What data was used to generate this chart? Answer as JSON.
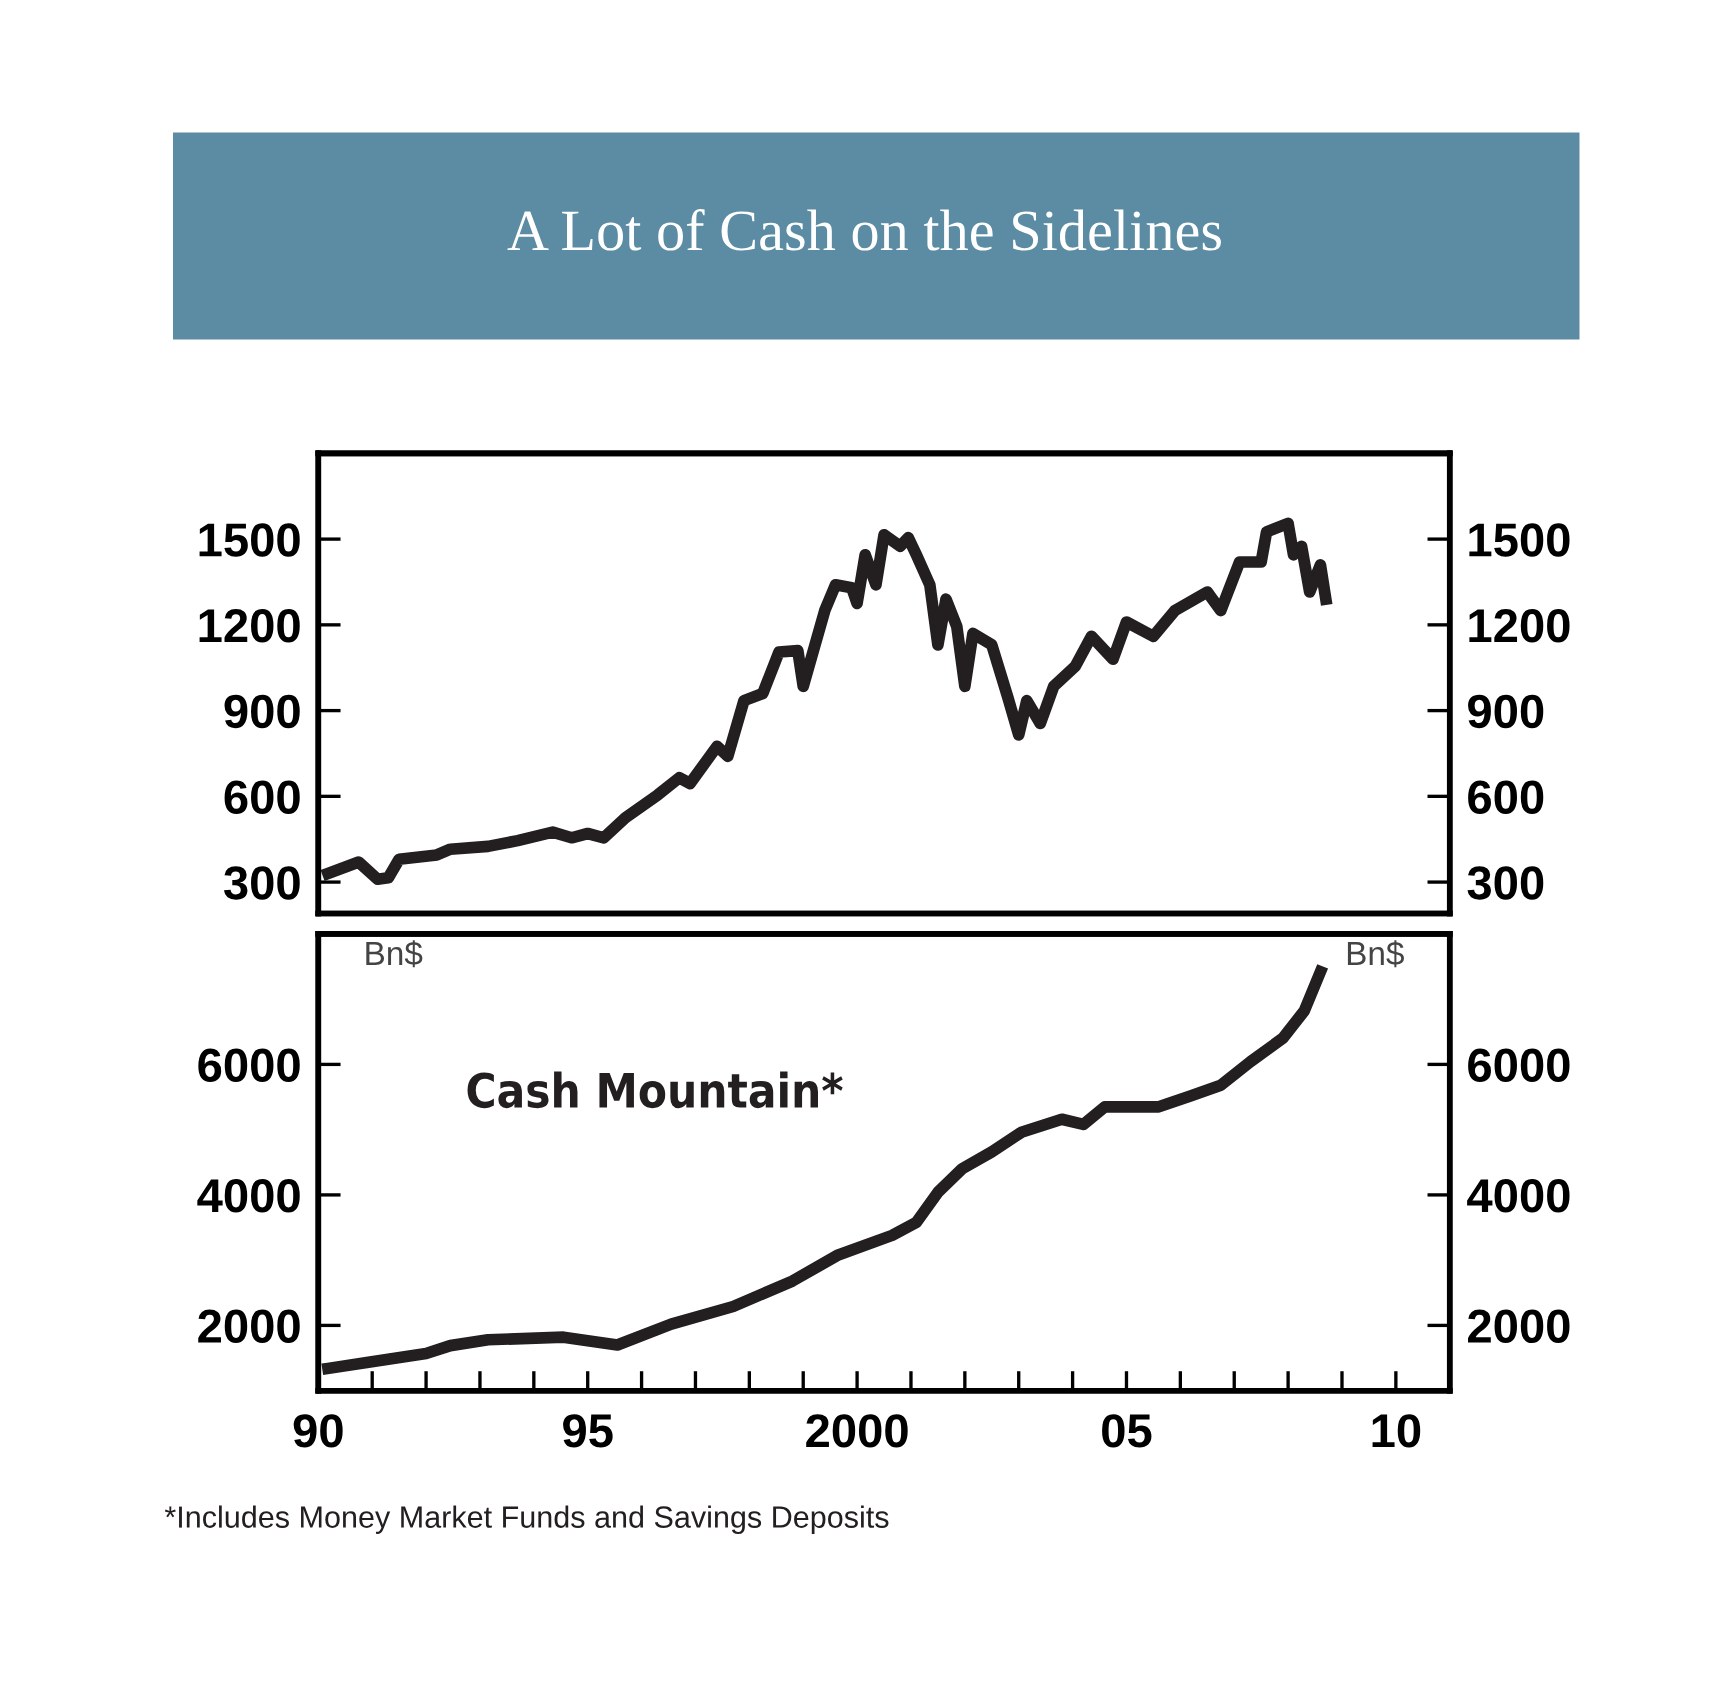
{
  "chart_data": [
    {
      "type": "line",
      "title": "A Lot of Cash on the Sidelines",
      "x": [
        1990.18,
        1990.75,
        1991.1,
        1991.3,
        1991.5,
        1992.2,
        1992.45,
        1993.15,
        1993.7,
        1994.35,
        1994.7,
        1995.0,
        1995.3,
        1995.7,
        1996.3,
        1996.7,
        1996.9,
        1997.4,
        1997.6,
        1997.9,
        1998.25,
        1998.55,
        1998.9,
        1999.0,
        1999.4,
        1999.6,
        1999.9,
        2000.0,
        2000.15,
        2000.35,
        2000.5,
        2000.8,
        2000.95,
        2001.1,
        2001.35,
        2001.5,
        2001.65,
        2001.85,
        2002.0,
        2002.15,
        2002.5,
        2002.8,
        2003.0,
        2003.15,
        2003.4,
        2003.65,
        2004.05,
        2004.35,
        2004.75,
        2005.0,
        2005.5,
        2005.9,
        2006.5,
        2006.75,
        2007.1,
        2007.5,
        2007.6,
        2008.0,
        2008.1,
        2008.25,
        2008.4,
        2008.6,
        2008.7
      ],
      "series": [
        {
          "color": "#231f20",
          "values": [
            330,
            370,
            310,
            315,
            380,
            395,
            415,
            425,
            445,
            475,
            455,
            470,
            455,
            525,
            605,
            665,
            645,
            775,
            740,
            935,
            960,
            1105,
            1110,
            985,
            1250,
            1340,
            1330,
            1275,
            1445,
            1340,
            1515,
            1475,
            1505,
            1445,
            1340,
            1130,
            1290,
            1195,
            985,
            1170,
            1130,
            945,
            815,
            935,
            855,
            985,
            1055,
            1160,
            1080,
            1210,
            1160,
            1250,
            1315,
            1250,
            1420,
            1420,
            1525,
            1555,
            1445,
            1475,
            1315,
            1410,
            1290
          ]
        }
      ],
      "xlim": [
        1990,
        2011
      ],
      "ylim": [
        190,
        1800
      ],
      "yticks": [
        300,
        600,
        900,
        1200,
        1500
      ],
      "y2lim": [
        190,
        1800
      ],
      "y2ticks": [
        300,
        600,
        900,
        1200,
        1500
      ],
      "tick_labels": "y",
      "grid": false,
      "marker": "none",
      "line_style": "solid"
    },
    {
      "type": "line",
      "x": [
        1990.18,
        1990.9,
        1992.0,
        1992.45,
        1993.15,
        1994.55,
        1995.55,
        1996.55,
        1997.7,
        1998.8,
        1999.65,
        2000.65,
        2001.1,
        2001.5,
        2001.95,
        2002.5,
        2003.05,
        2003.8,
        2004.2,
        2004.6,
        2005.6,
        2006.2,
        2006.75,
        2007.3,
        2007.9,
        2008.3,
        2008.6
      ],
      "series": [
        {
          "name": "Cash Mountain*",
          "color": "#231f20",
          "values": [
            1340,
            1430,
            1570,
            1690,
            1780,
            1820,
            1700,
            2020,
            2290,
            2680,
            3080,
            3380,
            3580,
            4040,
            4400,
            4660,
            4960,
            5160,
            5080,
            5350,
            5350,
            5520,
            5680,
            6040,
            6400,
            6820,
            7420
          ]
        }
      ],
      "ylabel": "Bn$",
      "y2label": "Bn$",
      "xlim": [
        1990,
        2011
      ],
      "ylim": [
        1000,
        8000
      ],
      "yticks": [
        2000,
        4000,
        6000
      ],
      "y2lim": [
        1000,
        8000
      ],
      "y2ticks": [
        2000,
        4000,
        6000
      ],
      "xticks": [
        {
          "value": 1990,
          "label": "90"
        },
        {
          "value": 1991,
          "label": null
        },
        {
          "value": 1992,
          "label": null
        },
        {
          "value": 1993,
          "label": null
        },
        {
          "value": 1994,
          "label": null
        },
        {
          "value": 1995,
          "label": "95"
        },
        {
          "value": 1996,
          "label": null
        },
        {
          "value": 1997,
          "label": null
        },
        {
          "value": 1998,
          "label": null
        },
        {
          "value": 1999,
          "label": null
        },
        {
          "value": 2000,
          "label": "2000"
        },
        {
          "value": 2001,
          "label": null
        },
        {
          "value": 2002,
          "label": null
        },
        {
          "value": 2003,
          "label": null
        },
        {
          "value": 2004,
          "label": null
        },
        {
          "value": 2005,
          "label": "05"
        },
        {
          "value": 2006,
          "label": null
        },
        {
          "value": 2007,
          "label": null
        },
        {
          "value": 2008,
          "label": null
        },
        {
          "value": 2009,
          "label": null
        },
        {
          "value": 2010,
          "label": "10"
        }
      ],
      "annotations": [
        "*Includes Money Market Funds and Savings Deposits"
      ],
      "grid": false,
      "marker": "none",
      "line_style": "solid"
    }
  ]
}
